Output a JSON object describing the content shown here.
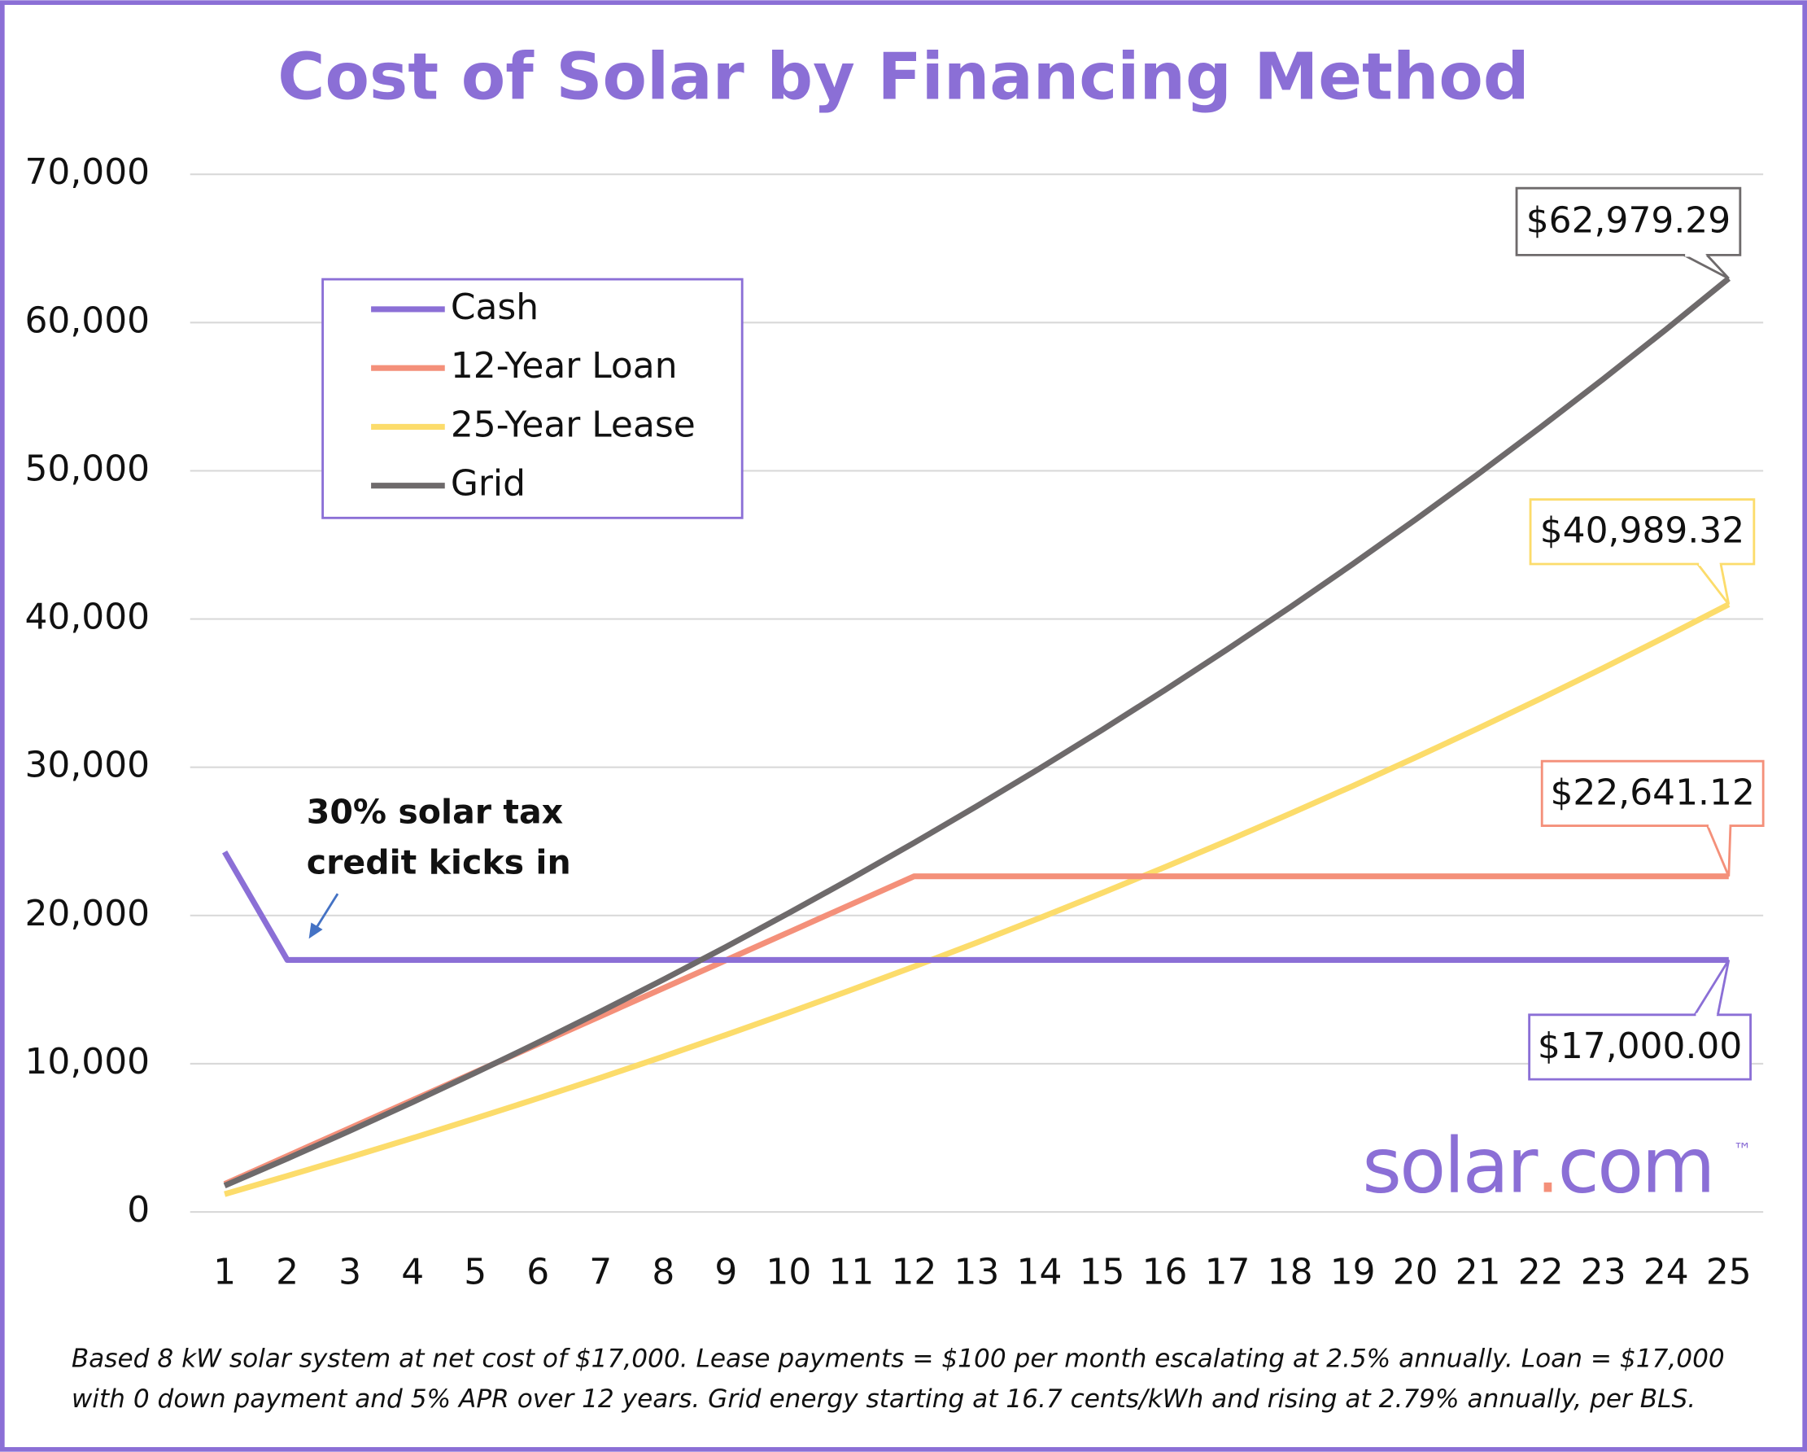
{
  "chart_data": {
    "type": "line",
    "title": "Cost of Solar by Financing Method",
    "x": [
      1,
      2,
      3,
      4,
      5,
      6,
      7,
      8,
      9,
      10,
      11,
      12,
      13,
      14,
      15,
      16,
      17,
      18,
      19,
      20,
      21,
      22,
      23,
      24,
      25
    ],
    "xlim": [
      0.45,
      25.55
    ],
    "xticks": [
      1,
      2,
      3,
      4,
      5,
      6,
      7,
      8,
      9,
      10,
      11,
      12,
      13,
      14,
      15,
      16,
      17,
      18,
      19,
      20,
      21,
      22,
      23,
      24,
      25
    ],
    "ylim": [
      0,
      70000
    ],
    "yticks": [
      0,
      {
        "value": 10000,
        "label": "10,000"
      },
      {
        "value": 20000,
        "label": "20,000"
      },
      {
        "value": 30000,
        "label": "30,000"
      },
      {
        "value": 40000,
        "label": "40,000"
      },
      {
        "value": 50000,
        "label": "50,000"
      },
      {
        "value": 60000,
        "label": "60,000"
      },
      {
        "value": 70000,
        "label": "70,000"
      }
    ],
    "grid": true,
    "legend": "upper left",
    "series": [
      {
        "name": "Cash",
        "color": "#8b6fd6",
        "values": [
          24285.71,
          17000,
          17000,
          17000,
          17000,
          17000,
          17000,
          17000,
          17000,
          17000,
          17000,
          17000,
          17000,
          17000,
          17000,
          17000,
          17000,
          17000,
          17000,
          17000,
          17000,
          17000,
          17000,
          17000,
          17000.0
        ],
        "value_labels": [
          null,
          null,
          null,
          null,
          null,
          null,
          null,
          null,
          null,
          null,
          null,
          null,
          null,
          null,
          null,
          null,
          null,
          null,
          null,
          null,
          null,
          null,
          null,
          null,
          "$17,000.00"
        ]
      },
      {
        "name": "12-Year Loan",
        "color": "#f4907a",
        "values": [
          1886.76,
          3773.52,
          5660.28,
          7547.04,
          9433.8,
          11320.56,
          13207.32,
          15094.08,
          16980.84,
          18867.6,
          20754.36,
          22641.12,
          22641.12,
          22641.12,
          22641.12,
          22641.12,
          22641.12,
          22641.12,
          22641.12,
          22641.12,
          22641.12,
          22641.12,
          22641.12,
          22641.12,
          22641.12
        ],
        "value_labels": [
          null,
          null,
          null,
          null,
          null,
          null,
          null,
          null,
          null,
          null,
          null,
          null,
          null,
          null,
          null,
          null,
          null,
          null,
          null,
          null,
          null,
          null,
          null,
          null,
          "$22,641.12"
        ]
      },
      {
        "name": "25-Year Lease",
        "color": "#fcdc6b",
        "values": [
          1200,
          2430,
          3690.75,
          4983.02,
          6307.6,
          7665.29,
          9056.92,
          10483.34,
          11945.42,
          13444.05,
          14980.15,
          16554.65,
          18168.51,
          19822.72,
          21518.29,
          23256.25,
          25037.66,
          26863.6,
          28735.19,
          30653.57,
          32619.91,
          34635.41,
          36701.3,
          38818.84,
          40989.32
        ],
        "value_labels": [
          null,
          null,
          null,
          null,
          null,
          null,
          null,
          null,
          null,
          null,
          null,
          null,
          null,
          null,
          null,
          null,
          null,
          null,
          null,
          null,
          null,
          null,
          null,
          null,
          "$40,989.32"
        ]
      },
      {
        "name": "Grid",
        "color": "#6e6a6b",
        "values": [
          1775,
          3600,
          5476,
          7405,
          9387,
          11424,
          13518,
          15671,
          17883,
          20158,
          22496,
          24899,
          27369,
          29908,
          32518,
          35200,
          37958,
          40792,
          43706,
          46701,
          49779,
          52944,
          56196,
          59540,
          62979.29
        ],
        "value_labels": [
          null,
          null,
          null,
          null,
          null,
          null,
          null,
          null,
          null,
          null,
          null,
          null,
          null,
          null,
          null,
          null,
          null,
          null,
          null,
          null,
          null,
          null,
          null,
          null,
          "$62,979.29"
        ]
      }
    ],
    "annotation": [
      "30% solar tax",
      "credit kicks in"
    ],
    "logo": [
      "solar",
      ".",
      "com"
    ],
    "trademark": "™",
    "footnote": [
      "Based 8 kW solar system at net cost of $17,000. Lease payments = $100 per month escalating at 2.5% annually. Loan = $17,000",
      "with 0 down payment and 5% APR over 12 years. Grid energy starting at 16.7 cents/kWh and rising at 2.79% annually, per BLS."
    ]
  }
}
